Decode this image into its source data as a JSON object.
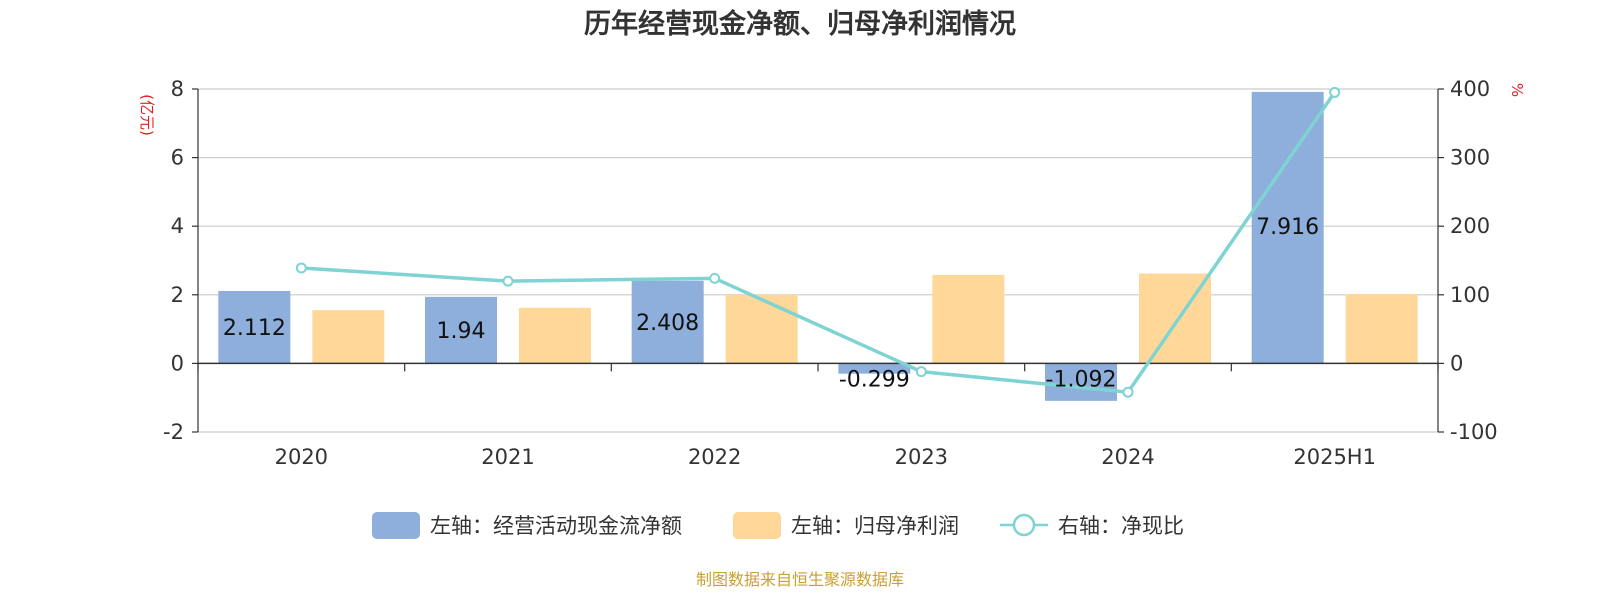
{
  "chart_data": {
    "type": "bar",
    "title": "历年经营现金净额、归母净利润情况",
    "categories": [
      "2020",
      "2021",
      "2022",
      "2023",
      "2024",
      "2025H1"
    ],
    "series": [
      {
        "name": "左轴：经营活动现金流净额",
        "axis": "left",
        "type": "bar",
        "color": "#8eaedb",
        "values": [
          2.112,
          1.94,
          2.408,
          -0.299,
          -1.092,
          7.916
        ],
        "labels": [
          "2.112",
          "1.94",
          "2.408",
          "-0.299",
          "-1.092",
          "7.916"
        ]
      },
      {
        "name": "左轴：归母净利润",
        "axis": "left",
        "type": "bar",
        "color": "#ffd899",
        "values": [
          1.55,
          1.62,
          2.0,
          2.58,
          2.62,
          2.02
        ]
      },
      {
        "name": "右轴：净现比",
        "axis": "right",
        "type": "line",
        "color": "#7fd3d3",
        "values": [
          139,
          120,
          124,
          -12,
          -42,
          395
        ]
      }
    ],
    "left_axis": {
      "unit": "(亿元)",
      "ylim": [
        -2,
        8
      ],
      "ticks": [
        -2,
        0,
        2,
        4,
        6,
        8
      ],
      "tick_labels": [
        "-2",
        "0",
        "2",
        "4",
        "6",
        "8"
      ]
    },
    "right_axis": {
      "unit": "%",
      "ylim": [
        -100,
        400
      ],
      "ticks": [
        -100,
        0,
        100,
        200,
        300,
        400
      ],
      "tick_labels": [
        "-100",
        "0",
        "100",
        "200",
        "300",
        "400"
      ]
    },
    "grid": true,
    "legend_position": "bottom"
  },
  "source": "制图数据来自恒生聚源数据库"
}
